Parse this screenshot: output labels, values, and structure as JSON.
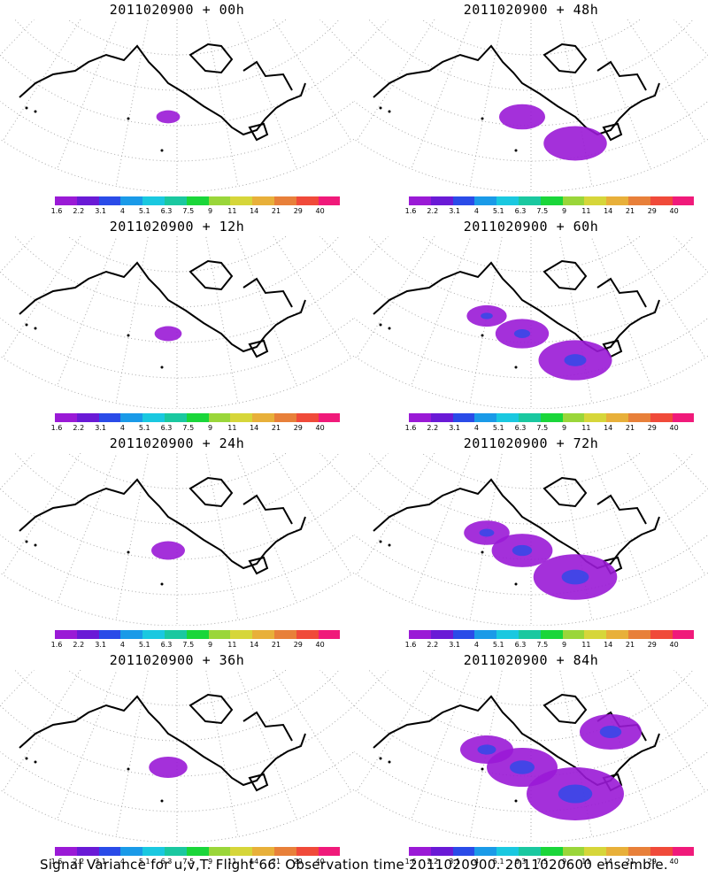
{
  "panels": [
    {
      "title": "2011020900 + 00h",
      "level": 0.05
    },
    {
      "title": "2011020900 + 48h",
      "level": 0.5
    },
    {
      "title": "2011020900 + 12h",
      "level": 0.12
    },
    {
      "title": "2011020900 + 60h",
      "level": 0.65
    },
    {
      "title": "2011020900 + 24h",
      "level": 0.25
    },
    {
      "title": "2011020900 + 72h",
      "level": 0.8
    },
    {
      "title": "2011020900 + 36h",
      "level": 0.35
    },
    {
      "title": "2011020900 + 84h",
      "level": 1.0
    }
  ],
  "colorbar": {
    "labels": [
      "1.6",
      "2.2",
      "3.1",
      "4",
      "5.1",
      "6.3",
      "7.5",
      "9",
      "11",
      "14",
      "21",
      "29",
      "40"
    ],
    "colors": [
      "#9a1ad6",
      "#6a1ad6",
      "#2a4be8",
      "#1a9ae8",
      "#1ac8e0",
      "#1ac8a0",
      "#1ad63a",
      "#9ad63a",
      "#d6d63a",
      "#e8b03a",
      "#e8803a",
      "#f04a3a",
      "#f01a7a"
    ]
  },
  "footer": "Signal Variance for u,v,T. Flight 66. Observation time 2011020900. 2011020600 ensemble."
}
